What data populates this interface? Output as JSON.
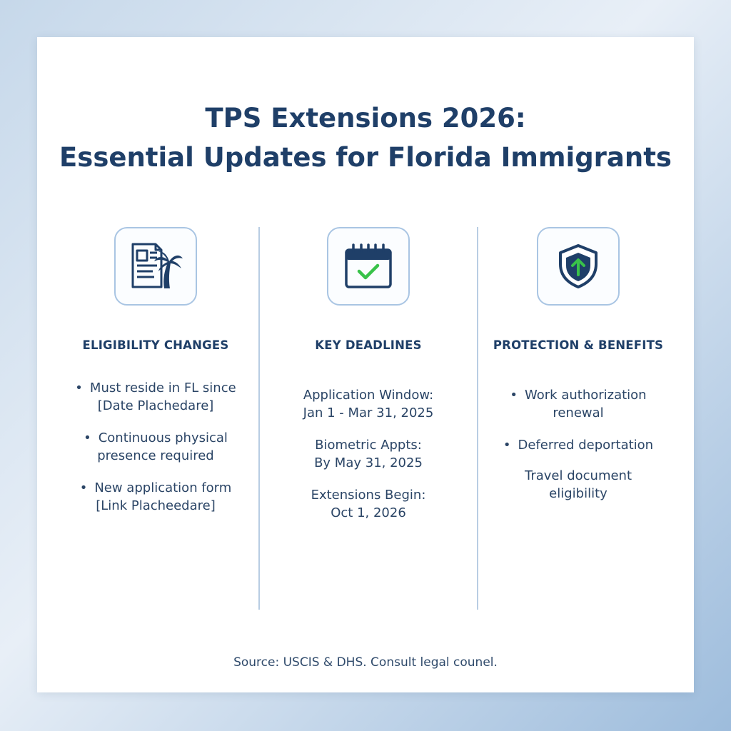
{
  "title": {
    "line1": "TPS Extensions 2026:",
    "line2": "Essential Updates for Florida Immigrants"
  },
  "columns": [
    {
      "icon": "document-palm-icon",
      "heading": "ELIGIBILITY CHANGES",
      "items": [
        {
          "bullet": "•",
          "line1": "Must reside in FL since",
          "line2": "[Date Plachedare]"
        },
        {
          "bullet": "•",
          "line1": "Continuous physical",
          "line2": "presence required"
        },
        {
          "bullet": "•",
          "line1": "New application form",
          "line2": "[Link Placheedare]"
        }
      ]
    },
    {
      "icon": "calendar-check-icon",
      "heading": "KEY DEADLINES",
      "items": [
        {
          "line1": "Application Window:",
          "line2": "Jan 1 - Mar 31, 2025"
        },
        {
          "line1": "Biometric Appts:",
          "line2": "By May 31, 2025"
        },
        {
          "line1": "Extensions Begin:",
          "line2": "Oct 1, 2026"
        }
      ]
    },
    {
      "icon": "shield-arrow-icon",
      "heading": "PROTECTION & BENEFITS",
      "items": [
        {
          "bullet": "•",
          "line1": "Work authorization",
          "line2": "renewal"
        },
        {
          "bullet": "•",
          "line1": "Deferred deportation",
          "line2": ""
        },
        {
          "line1": "Travel document",
          "line2": "eligibility"
        }
      ]
    }
  ],
  "footer": {
    "source": "Source: USCIS & DHS. Consult legal counel."
  },
  "colors": {
    "navy": "#1f3f68",
    "accent_green": "#39c24a",
    "border_blue": "#a9c5e3"
  }
}
